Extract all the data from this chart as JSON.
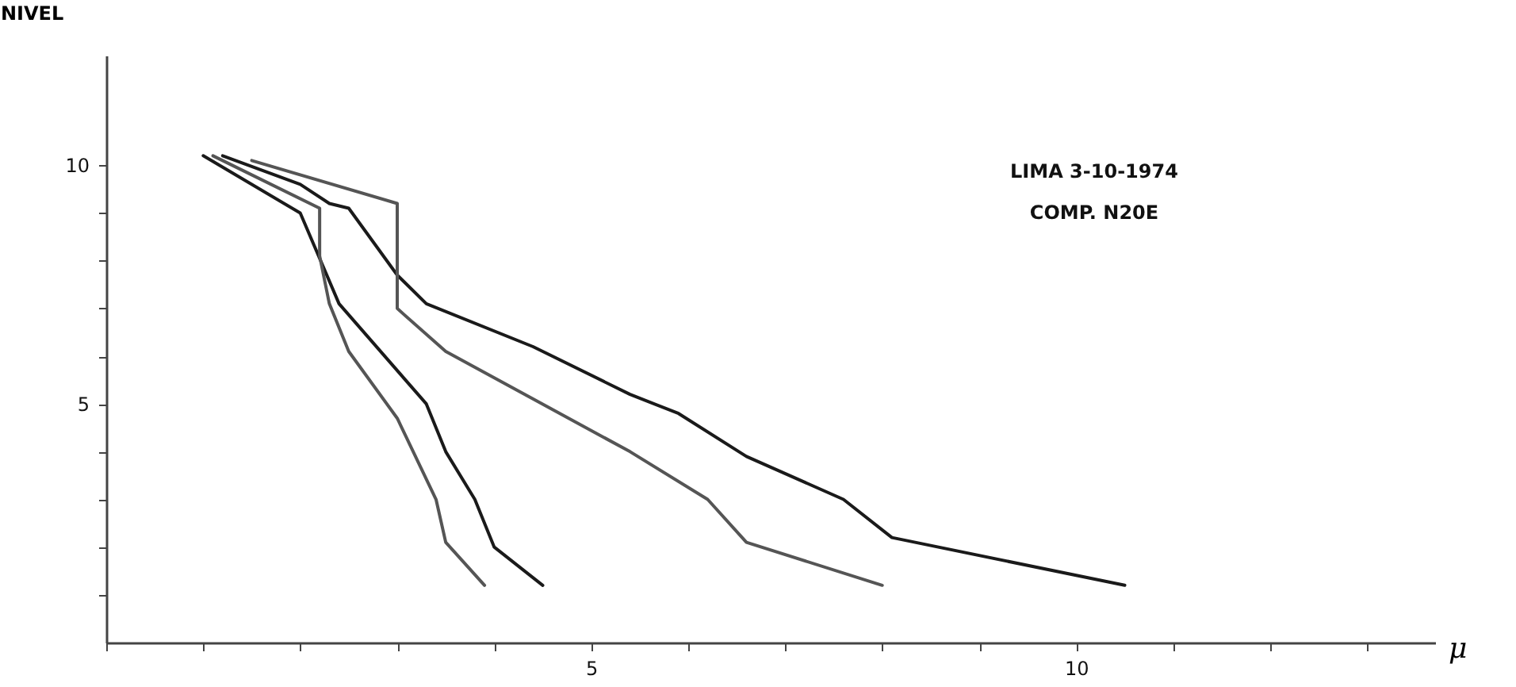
{
  "chart_data": {
    "type": "line",
    "xlabel": "μ",
    "ylabel": "NIVEL",
    "annotations": [
      "LIMA 3-10-1974",
      "COMP. N20E"
    ],
    "xlim": [
      0,
      13.7
    ],
    "ylim": [
      0,
      12.3
    ],
    "xticks": [
      {
        "value": 0,
        "label": null
      },
      {
        "value": 1,
        "label": null
      },
      {
        "value": 2,
        "label": null
      },
      {
        "value": 3,
        "label": null
      },
      {
        "value": 4,
        "label": null
      },
      5,
      {
        "value": 6,
        "label": null
      },
      {
        "value": 7,
        "label": null
      },
      {
        "value": 8,
        "label": null
      },
      {
        "value": 9,
        "label": null
      },
      10,
      {
        "value": 11,
        "label": null
      },
      {
        "value": 12,
        "label": null
      },
      {
        "value": 13,
        "label": null
      }
    ],
    "yticks": [
      {
        "value": 1,
        "label": null
      },
      {
        "value": 2,
        "label": null
      },
      {
        "value": 3,
        "label": null
      },
      {
        "value": 4,
        "label": null
      },
      5,
      {
        "value": 6,
        "label": null
      },
      {
        "value": 7,
        "label": null
      },
      {
        "value": 8,
        "label": null
      },
      {
        "value": 9,
        "label": null
      },
      10
    ],
    "grid": false,
    "legend": false,
    "marker": "none",
    "line_style": "solid",
    "series": [
      {
        "color": "#1a1a1a",
        "x": [
          1.0,
          2.0,
          2.4,
          3.3,
          3.5,
          3.8,
          4.0,
          4.5
        ],
        "values": [
          10.2,
          9.0,
          7.1,
          5.0,
          4.0,
          3.0,
          2.0,
          1.2
        ]
      },
      {
        "color": "#555555",
        "x": [
          1.1,
          2.2,
          2.2,
          2.3,
          2.5,
          3.0,
          3.4,
          3.5,
          3.9
        ],
        "values": [
          10.2,
          9.1,
          8.1,
          7.1,
          6.1,
          4.7,
          3.0,
          2.1,
          1.2
        ]
      },
      {
        "color": "#1a1a1a",
        "x": [
          1.2,
          2.0,
          2.3,
          2.5,
          3.0,
          3.3,
          4.4,
          5.4,
          5.9,
          6.6,
          7.6,
          8.1,
          10.5
        ],
        "values": [
          10.2,
          9.6,
          9.2,
          9.1,
          7.7,
          7.1,
          6.2,
          5.2,
          4.8,
          3.9,
          3.0,
          2.2,
          1.2
        ]
      },
      {
        "color": "#555555",
        "x": [
          1.5,
          3.0,
          3.0,
          3.5,
          5.4,
          6.2,
          6.6,
          8.0
        ],
        "values": [
          10.1,
          9.2,
          7.0,
          6.1,
          4.0,
          3.0,
          2.1,
          1.2
        ]
      }
    ]
  }
}
